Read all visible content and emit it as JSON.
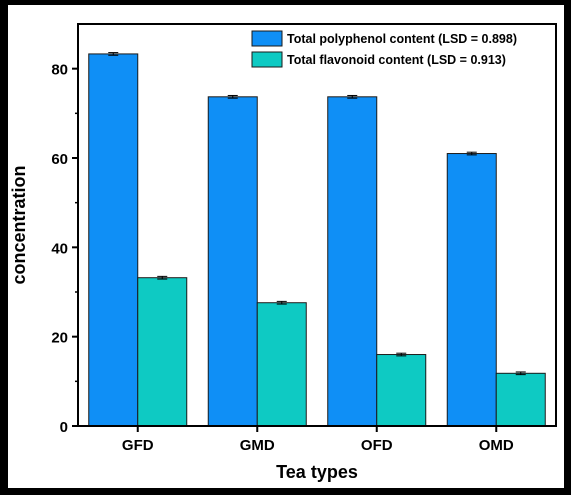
{
  "chart_data": {
    "type": "bar",
    "xlabel": "Tea types",
    "ylabel": "concentration",
    "categories": [
      "GFD",
      "GMD",
      "OFD",
      "OMD"
    ],
    "ylim": [
      0,
      90
    ],
    "yticks": [
      0,
      20,
      40,
      60,
      80
    ],
    "series": [
      {
        "name": "Total polyphenol content (LSD = 0.898)",
        "color": "#0f8ff6",
        "values": [
          83.3,
          73.7,
          73.7,
          61.0
        ],
        "errors": [
          0.3,
          0.3,
          0.3,
          0.3
        ]
      },
      {
        "name": "Total flavonoid content (LSD = 0.913)",
        "color": "#0ecac3",
        "values": [
          33.2,
          27.6,
          16.0,
          11.8
        ],
        "errors": [
          0.3,
          0.3,
          0.3,
          0.3
        ]
      }
    ],
    "legend_position": "top-right",
    "grid": false
  }
}
